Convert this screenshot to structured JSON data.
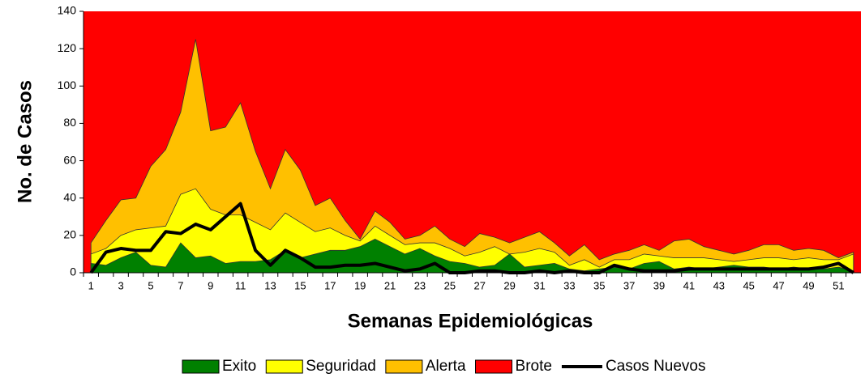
{
  "chart_data": {
    "type": "area",
    "y_label": "No. de Casos",
    "x_label": "Semanas Epidemiológicas",
    "categories": [
      1,
      null,
      3,
      null,
      5,
      null,
      7,
      null,
      9,
      null,
      11,
      null,
      13,
      null,
      15,
      null,
      17,
      null,
      19,
      null,
      21,
      null,
      23,
      null,
      25,
      null,
      27,
      null,
      29,
      null,
      31,
      null,
      33,
      null,
      35,
      null,
      37,
      null,
      39,
      null,
      41,
      null,
      43,
      null,
      45,
      null,
      47,
      null,
      49,
      null,
      51,
      null
    ],
    "ylim": [
      0,
      140
    ],
    "yticks": [
      0,
      20,
      40,
      60,
      80,
      100,
      120,
      140
    ],
    "series": [
      {
        "name": "Exito",
        "color": "#008000",
        "values": [
          5,
          4,
          8,
          11,
          4,
          3,
          16,
          8,
          9,
          5,
          6,
          6,
          7,
          12,
          8,
          10,
          12,
          12,
          14,
          18,
          14,
          10,
          13,
          9,
          6,
          5,
          3,
          4,
          10,
          3,
          4,
          5,
          2,
          1,
          2,
          3,
          2,
          5,
          6,
          2,
          3,
          2,
          3,
          4,
          3,
          3,
          2,
          3,
          2,
          2,
          3,
          1
        ]
      },
      {
        "name": "Seguridad",
        "color": "#ffff00",
        "values": [
          10,
          13,
          20,
          23,
          24,
          25,
          42,
          45,
          34,
          31,
          31,
          27,
          23,
          32,
          27,
          22,
          24,
          20,
          17,
          25,
          20,
          15,
          16,
          16,
          13,
          9,
          11,
          14,
          10,
          11,
          13,
          11,
          4,
          7,
          3,
          7,
          7,
          10,
          9,
          8,
          8,
          8,
          7,
          6,
          7,
          8,
          8,
          7,
          8,
          7,
          7,
          10
        ]
      },
      {
        "name": "Alerta",
        "color": "#ffc000",
        "values": [
          16,
          28,
          39,
          40,
          57,
          66,
          86,
          125,
          76,
          78,
          91,
          65,
          45,
          66,
          55,
          36,
          40,
          28,
          18,
          33,
          27,
          18,
          20,
          25,
          18,
          14,
          21,
          19,
          16,
          19,
          22,
          16,
          9,
          15,
          7,
          10,
          12,
          15,
          12,
          17,
          18,
          14,
          12,
          10,
          12,
          15,
          15,
          12,
          13,
          12,
          8,
          11
        ]
      },
      {
        "name": "Brote",
        "color": "#ff0000",
        "fill_to_top": true
      },
      {
        "name": "Casos Nuevos",
        "color": "#000000",
        "line": true,
        "values": [
          0,
          11,
          13,
          12,
          12,
          22,
          21,
          26,
          23,
          30,
          37,
          12,
          4,
          12,
          8,
          3,
          3,
          4,
          4,
          5,
          3,
          1,
          2,
          5,
          0,
          0,
          1,
          1,
          0,
          0,
          1,
          0,
          1,
          0,
          0,
          4,
          2,
          1,
          1,
          1,
          2,
          2,
          2,
          2,
          2,
          2,
          2,
          2,
          2,
          3,
          5,
          0
        ]
      }
    ]
  }
}
